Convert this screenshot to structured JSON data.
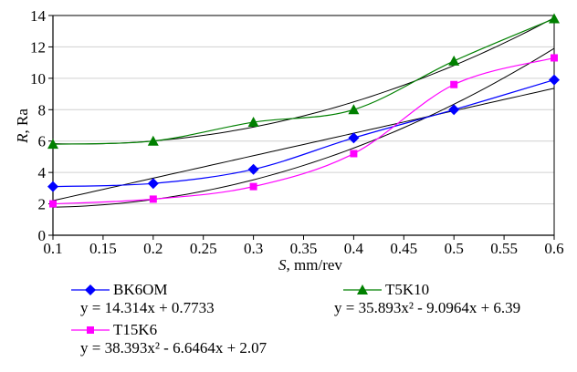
{
  "chart_data": {
    "type": "scatter",
    "xlabel_var": "S",
    "xlabel_unit": ", mm/rev",
    "ylabel_var": "R",
    "ylabel_unit": ", Ra",
    "xlim": [
      0.1,
      0.6
    ],
    "ylim": [
      0,
      14
    ],
    "x_ticks": [
      "0.1",
      "0.15",
      "0.2",
      "0.25",
      "0.3",
      "0.35",
      "0.4",
      "0.45",
      "0.5",
      "0.55",
      "0.6"
    ],
    "y_ticks": [
      "0",
      "2",
      "4",
      "6",
      "8",
      "10",
      "12",
      "14"
    ],
    "grid": "horizontal",
    "series": [
      {
        "name": "BK6OM",
        "marker": "diamond",
        "color": "#0000ff",
        "x": [
          0.1,
          0.2,
          0.3,
          0.4,
          0.5,
          0.6
        ],
        "y": [
          3.1,
          3.3,
          4.2,
          6.2,
          8.0,
          9.9
        ],
        "equation": "y = 14.314x + 0.7733",
        "fit": {
          "kind": "linear",
          "a": 14.314,
          "b": 0.7733
        }
      },
      {
        "name": "T5K10",
        "marker": "triangle",
        "color": "#008000",
        "x": [
          0.1,
          0.2,
          0.3,
          0.4,
          0.5,
          0.6
        ],
        "y": [
          5.8,
          6.0,
          7.2,
          8.0,
          11.1,
          13.8
        ],
        "equation": "y = 35.893x² - 9.0964x + 6.39",
        "fit": {
          "kind": "quadratic",
          "a": 35.893,
          "b": -9.0964,
          "c": 6.39
        }
      },
      {
        "name": "T15K6",
        "marker": "square",
        "color": "#ff00ff",
        "x": [
          0.1,
          0.2,
          0.3,
          0.4,
          0.5,
          0.6
        ],
        "y": [
          2.0,
          2.3,
          3.1,
          5.2,
          9.6,
          11.3
        ],
        "equation": "y = 38.393x² - 6.6464x + 2.07",
        "fit": {
          "kind": "quadratic",
          "a": 38.393,
          "b": -6.6464,
          "c": 2.07
        }
      }
    ]
  }
}
